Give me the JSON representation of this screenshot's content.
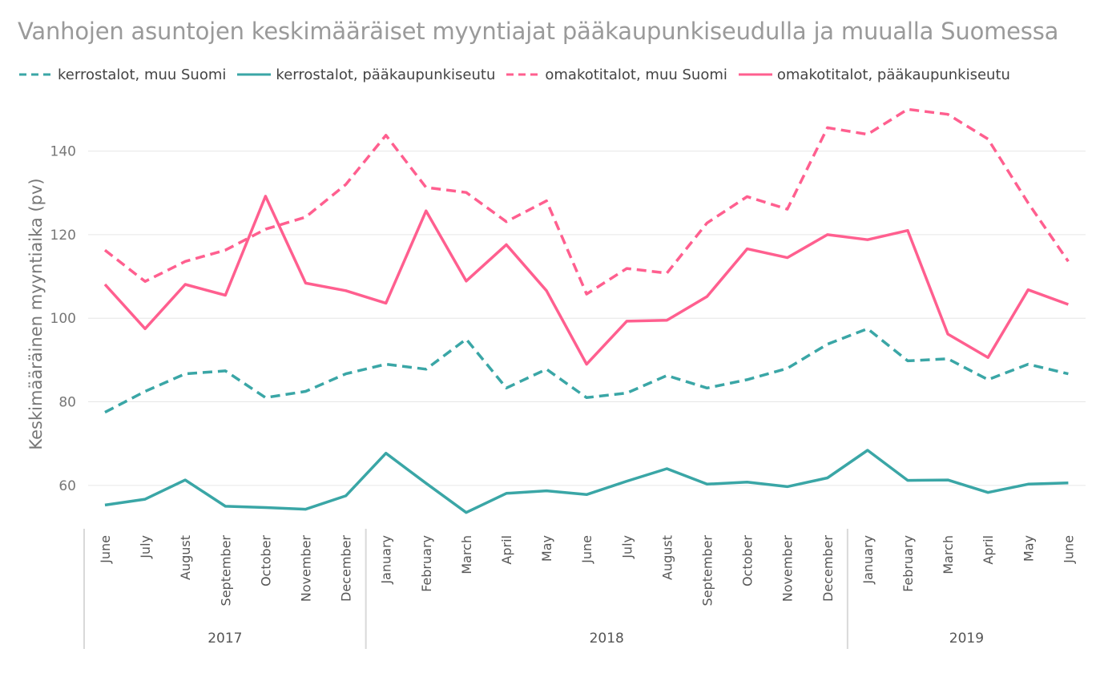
{
  "chart_data": {
    "type": "line",
    "title": "Vanhojen asuntojen keskimääräiset myyntiajat pääkaupunkiseudulla ja muualla Suomessa",
    "ylabel": "Keskimääräinen myyntiaika (pv)",
    "xlabel": "",
    "ylim": [
      50,
      152
    ],
    "yticks": [
      60,
      80,
      100,
      120,
      140
    ],
    "grid": true,
    "legend_position": "top-left",
    "categories": [
      "June",
      "July",
      "August",
      "September",
      "October",
      "November",
      "December",
      "January",
      "February",
      "March",
      "April",
      "May",
      "June",
      "July",
      "August",
      "September",
      "October",
      "November",
      "December",
      "January",
      "February",
      "March",
      "April",
      "May",
      "June"
    ],
    "years": [
      {
        "label": "2017",
        "start": 0,
        "end": 6
      },
      {
        "label": "2018",
        "start": 7,
        "end": 18
      },
      {
        "label": "2019",
        "start": 19,
        "end": 24
      }
    ],
    "series": [
      {
        "name": "kerrostalot, muu Suomi",
        "color": "#3aa6a6",
        "dash": true,
        "values": [
          77.5,
          82.5,
          86.7,
          87.4,
          81.0,
          82.5,
          86.7,
          89.0,
          87.8,
          95.0,
          83.3,
          87.8,
          81.0,
          82.1,
          86.3,
          83.3,
          85.3,
          88.0,
          93.8,
          97.5,
          89.8,
          90.3,
          85.3,
          89.0,
          86.7
        ]
      },
      {
        "name": "kerrostalot, pääkaupunkiseutu",
        "color": "#3aa6a6",
        "dash": false,
        "values": [
          55.3,
          56.7,
          61.3,
          55.0,
          54.7,
          54.3,
          57.5,
          67.7,
          60.5,
          53.5,
          58.1,
          58.7,
          57.8,
          61.0,
          64.0,
          60.3,
          60.8,
          59.7,
          61.8,
          68.4,
          61.2,
          61.3,
          58.3,
          60.3,
          60.6
        ]
      },
      {
        "name": "omakotitalot, muu Suomi",
        "color": "#ff5f8f",
        "dash": true,
        "values": [
          116.3,
          108.8,
          113.6,
          116.3,
          121.3,
          124.2,
          132.0,
          143.8,
          131.3,
          130.1,
          123.1,
          128.1,
          105.8,
          111.9,
          110.8,
          122.8,
          129.1,
          126.1,
          145.6,
          144.0,
          150.0,
          148.8,
          142.9,
          127.6,
          113.6
        ]
      },
      {
        "name": "omakotitalot, pääkaupunkiseutu",
        "color": "#ff5f8f",
        "dash": false,
        "values": [
          108.1,
          97.5,
          108.1,
          105.5,
          129.2,
          108.4,
          106.6,
          103.6,
          125.7,
          108.9,
          117.6,
          106.6,
          89.0,
          99.3,
          99.5,
          105.2,
          116.6,
          114.5,
          120.0,
          118.8,
          121.0,
          96.2,
          90.6,
          106.8,
          103.3
        ]
      }
    ]
  }
}
